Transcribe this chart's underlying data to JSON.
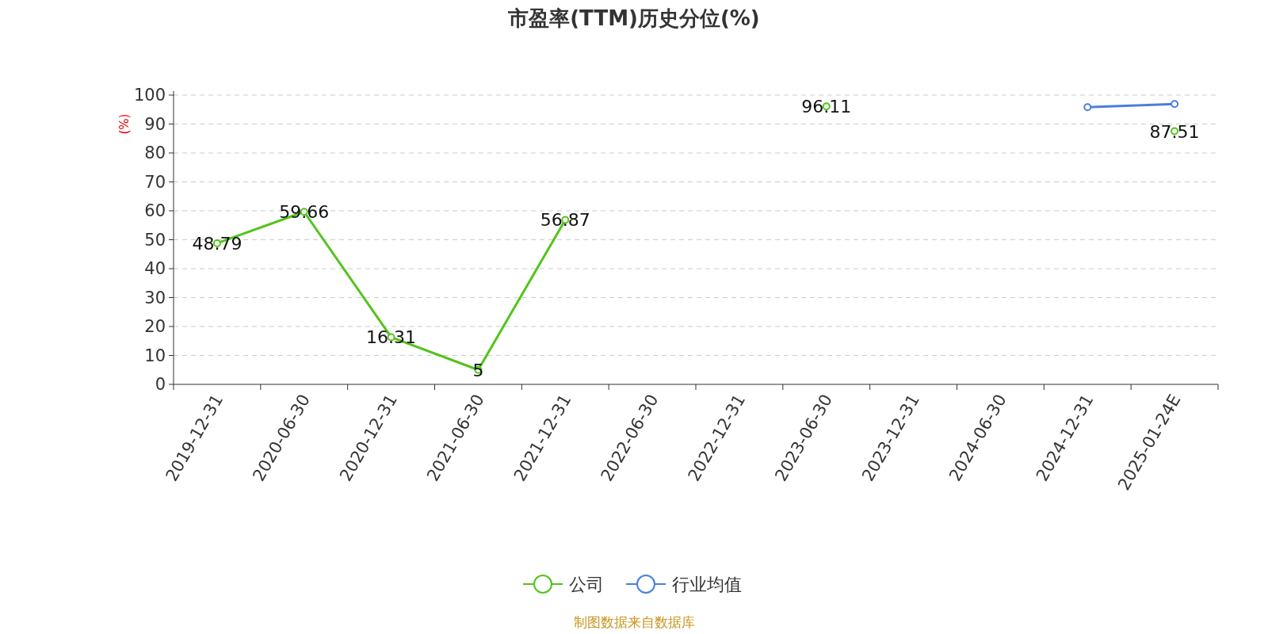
{
  "chart_data": {
    "type": "line",
    "title": "市盈率(TTM)历史分位(%)",
    "ylabel": "(%)",
    "categories": [
      "2019-12-31",
      "2020-06-30",
      "2020-12-31",
      "2021-06-30",
      "2021-12-31",
      "2022-06-30",
      "2022-12-31",
      "2023-06-30",
      "2023-12-31",
      "2024-06-30",
      "2024-12-31",
      "2025-01-24E"
    ],
    "series": [
      {
        "name": "公司",
        "color": "#52c41a",
        "values": [
          48.79,
          59.66,
          16.31,
          5,
          56.87,
          null,
          null,
          96.11,
          null,
          null,
          null,
          87.51
        ],
        "value_labels": [
          "48.79",
          "59.66",
          "16.31",
          "5",
          "56.87",
          null,
          null,
          "96.11",
          null,
          null,
          null,
          "87.51"
        ]
      },
      {
        "name": "行业均值",
        "color": "#4a7ee0",
        "values": [
          null,
          null,
          null,
          null,
          null,
          null,
          null,
          null,
          null,
          null,
          95.8,
          96.9
        ]
      }
    ],
    "ylim": [
      0,
      100
    ],
    "yticks": [
      0,
      10,
      20,
      30,
      40,
      50,
      60,
      70,
      80,
      90,
      100
    ],
    "grid": "y",
    "legend": "bottom",
    "marker": "circle",
    "annotations": [
      "制图数据来自数据库"
    ]
  }
}
